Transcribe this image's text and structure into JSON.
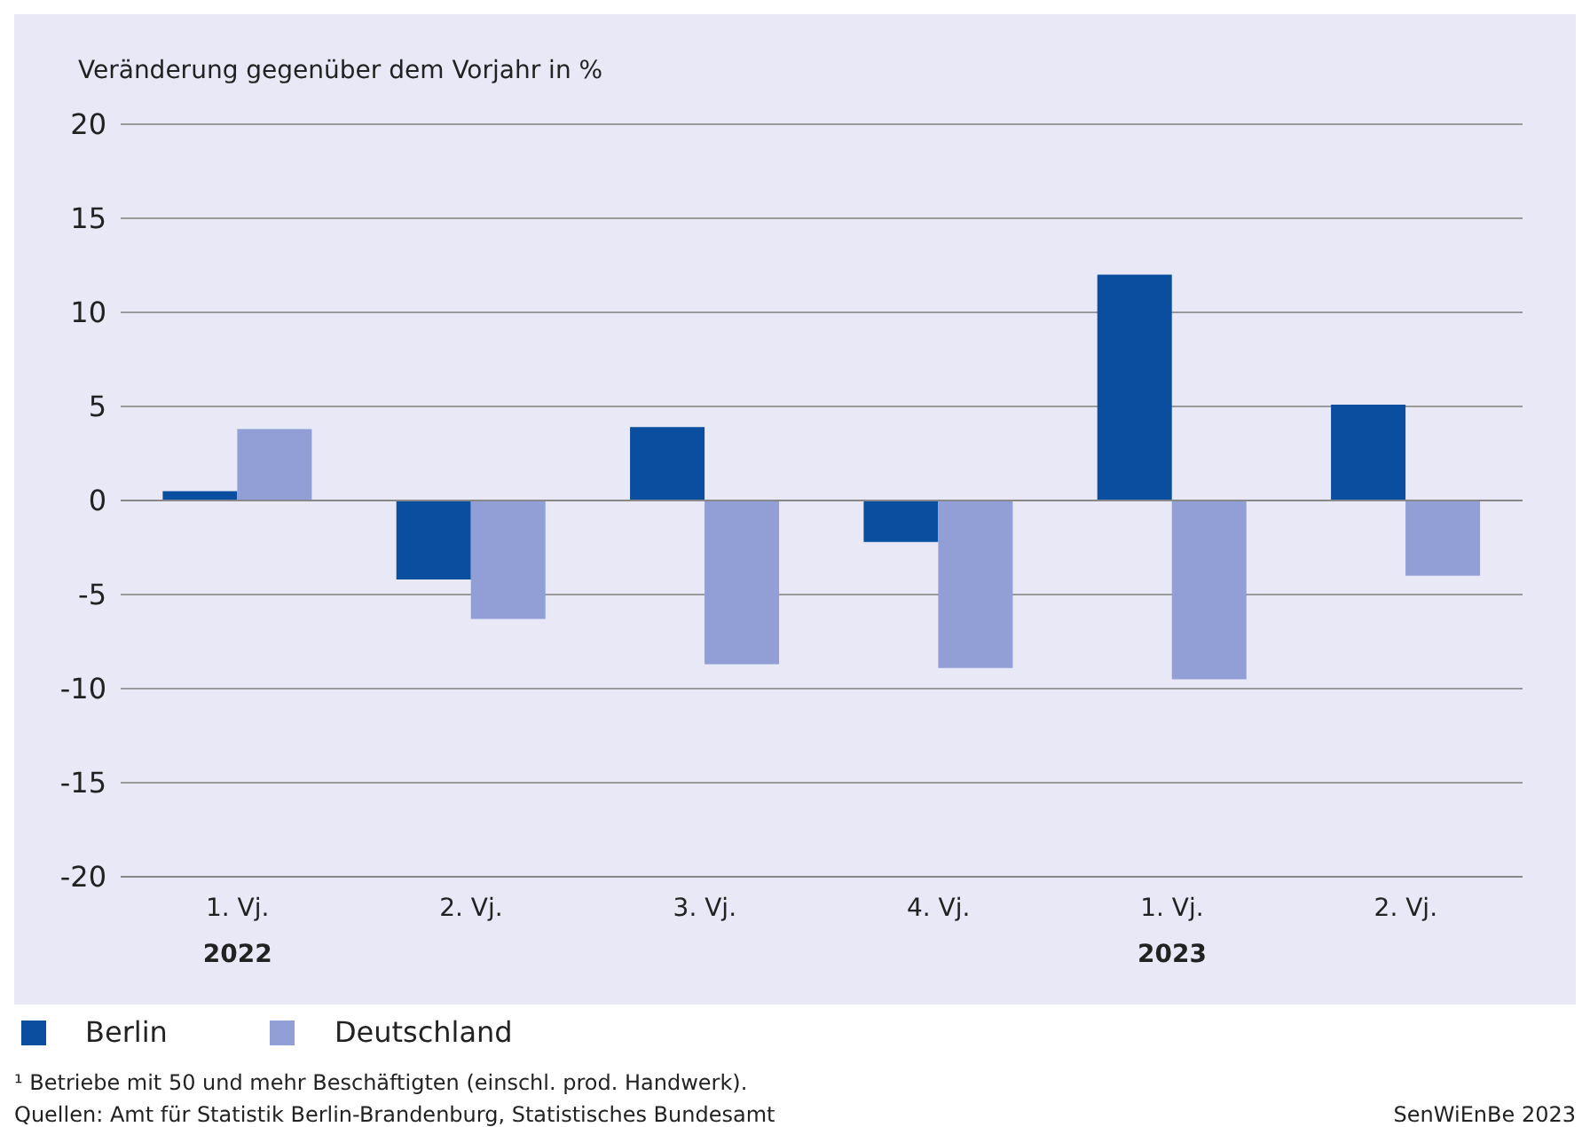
{
  "chart_data": {
    "type": "bar",
    "ylabel": "Veränderung gegenüber dem Vorjahr in %",
    "categories": [
      "1. Vj.\n2022",
      "2. Vj.",
      "3. Vj.",
      "4. Vj.",
      "1. Vj.\n2023",
      "2. Vj."
    ],
    "series": [
      {
        "name": "Berlin",
        "color": "#0a4ea0",
        "values": [
          0.5,
          -4.2,
          3.9,
          -2.2,
          12.0,
          5.1
        ]
      },
      {
        "name": "Deutschland",
        "color": "#919fd6",
        "values": [
          3.8,
          -6.3,
          -8.7,
          -8.9,
          -9.5,
          -4.0
        ]
      }
    ],
    "ylim": [
      -20,
      20
    ],
    "yticks": [
      -20,
      -15,
      -10,
      -5,
      0,
      5,
      10,
      15,
      20
    ],
    "grid": "y",
    "legend": "bottom",
    "annotations": [
      "¹  Betriebe mit 50 und mehr Beschäftigten (einschl. prod. Handwerk).",
      "Quellen: Amt für Statistik Berlin-Brandenburg, Statistisches Bundesamt",
      "SenWiEnBe 2023"
    ]
  }
}
